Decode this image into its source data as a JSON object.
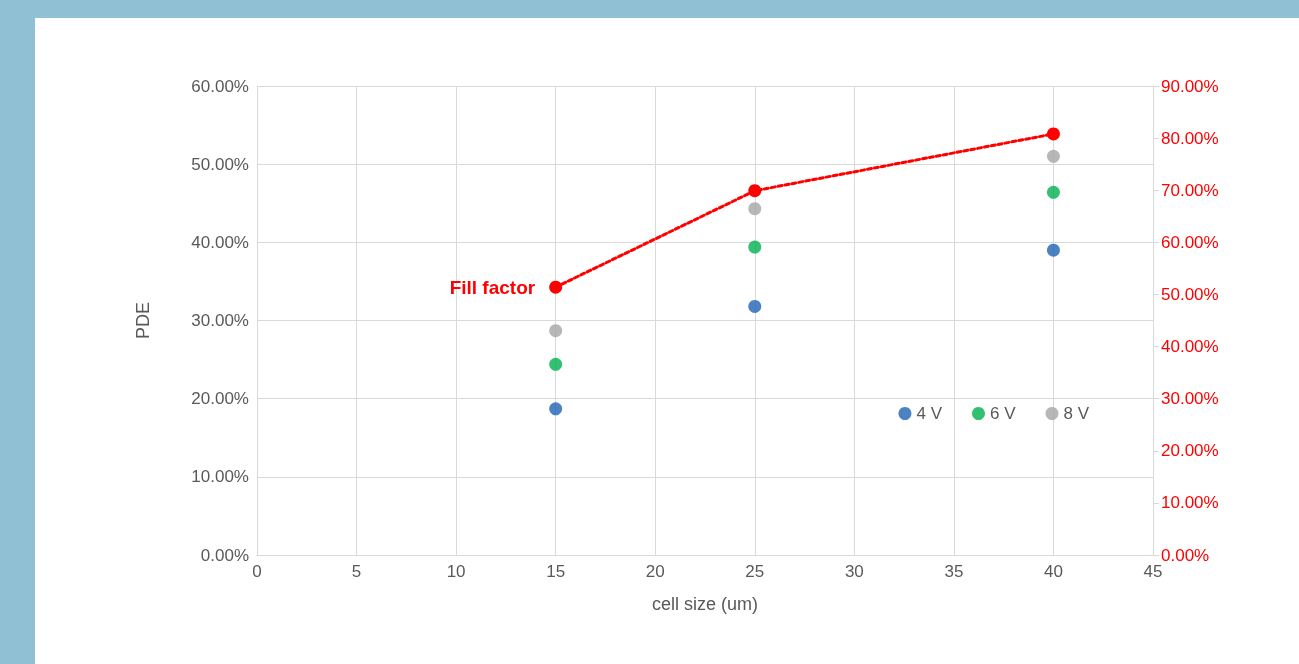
{
  "chart_data": {
    "type": "scatter",
    "xlabel": "cell size (um)",
    "ylabel": "PDE",
    "x": [
      15,
      25,
      40
    ],
    "series": [
      {
        "name": "4 V",
        "color": "#1f63b5",
        "values": [
          18.7,
          31.8,
          39.0
        ]
      },
      {
        "name": "6 V",
        "color": "#00b050",
        "values": [
          24.4,
          39.4,
          46.4
        ]
      },
      {
        "name": "8 V",
        "color": "#a5a5a5",
        "values": [
          28.7,
          44.3,
          51.0
        ]
      },
      {
        "name": "Fill factor",
        "type": "line",
        "axis": "y2",
        "color": "#ff0000",
        "line_style": "dashed",
        "values": [
          51.4,
          69.9,
          80.8
        ]
      }
    ],
    "xlim": [
      0,
      45
    ],
    "xticks": [
      0,
      5,
      10,
      15,
      20,
      25,
      30,
      35,
      40,
      45
    ],
    "ylim": [
      0,
      60
    ],
    "yticks": [
      {
        "value": 0,
        "label": "0.00%"
      },
      {
        "value": 10,
        "label": "10.00%"
      },
      {
        "value": 20,
        "label": "20.00%"
      },
      {
        "value": 30,
        "label": "30.00%"
      },
      {
        "value": 40,
        "label": "40.00%"
      },
      {
        "value": 50,
        "label": "50.00%"
      },
      {
        "value": 60,
        "label": "60.00%"
      }
    ],
    "y2lim": [
      0,
      90
    ],
    "y2ticks": [
      {
        "value": 0,
        "label": "0.00%"
      },
      {
        "value": 10,
        "label": "10.00%"
      },
      {
        "value": 20,
        "label": "20.00%"
      },
      {
        "value": 30,
        "label": "30.00%"
      },
      {
        "value": 40,
        "label": "40.00%"
      },
      {
        "value": 50,
        "label": "50.00%"
      },
      {
        "value": 60,
        "label": "60.00%"
      },
      {
        "value": 70,
        "label": "70.00%"
      },
      {
        "value": 80,
        "label": "80.00%"
      },
      {
        "value": 90,
        "label": "90.00%"
      }
    ],
    "grid": true,
    "legend": "bottom right",
    "marker": "circle"
  }
}
